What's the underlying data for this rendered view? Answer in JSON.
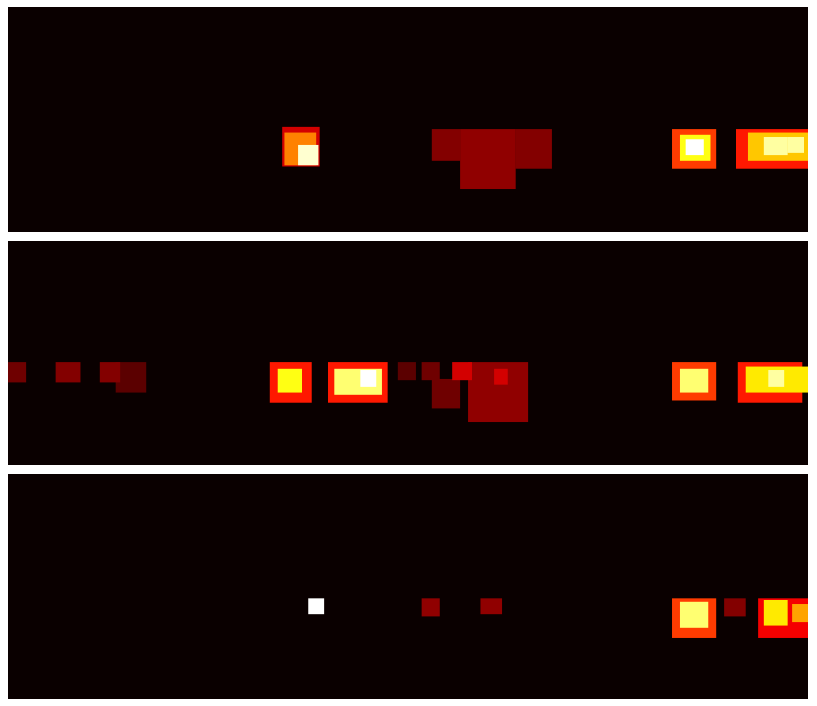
{
  "chart_data": [
    {
      "type": "heatmap",
      "colormap": "hot",
      "background": "#0a0000",
      "grid": false,
      "patches": [
        {
          "x": 14.5,
          "y": 6.9,
          "w": 1.0,
          "h": 1.0,
          "v": 0.95
        },
        {
          "x": 13.8,
          "y": 6.3,
          "w": 1.6,
          "h": 1.6,
          "v": 0.55
        },
        {
          "x": 13.7,
          "y": 6.0,
          "w": 1.9,
          "h": 2.0,
          "v": 0.3
        },
        {
          "x": 21.2,
          "y": 6.1,
          "w": 1.4,
          "h": 1.6,
          "v": 0.18
        },
        {
          "x": 22.6,
          "y": 6.1,
          "w": 2.8,
          "h": 3.0,
          "v": 0.2
        },
        {
          "x": 25.4,
          "y": 6.1,
          "w": 1.8,
          "h": 2.0,
          "v": 0.18
        },
        {
          "x": 33.2,
          "y": 6.1,
          "w": 2.2,
          "h": 2.0,
          "v": 0.45
        },
        {
          "x": 33.6,
          "y": 6.4,
          "w": 1.5,
          "h": 1.3,
          "v": 0.75
        },
        {
          "x": 33.9,
          "y": 6.6,
          "w": 0.9,
          "h": 0.8,
          "v": 1.0
        },
        {
          "x": 36.4,
          "y": 6.1,
          "w": 4.0,
          "h": 2.0,
          "v": 0.4
        },
        {
          "x": 37.0,
          "y": 6.3,
          "w": 3.3,
          "h": 1.4,
          "v": 0.65
        },
        {
          "x": 37.8,
          "y": 6.5,
          "w": 1.2,
          "h": 0.9,
          "v": 0.9
        },
        {
          "x": 39.0,
          "y": 6.5,
          "w": 0.8,
          "h": 0.8,
          "v": 0.9
        }
      ]
    },
    {
      "type": "heatmap",
      "colormap": "hot",
      "background": "#0a0000",
      "grid": false,
      "patches": [
        {
          "x": 0.0,
          "y": 6.1,
          "w": 0.9,
          "h": 1.0,
          "v": 0.15
        },
        {
          "x": 2.4,
          "y": 6.1,
          "w": 1.2,
          "h": 1.0,
          "v": 0.18
        },
        {
          "x": 4.6,
          "y": 6.1,
          "w": 1.0,
          "h": 1.0,
          "v": 0.18
        },
        {
          "x": 5.4,
          "y": 6.1,
          "w": 1.5,
          "h": 1.5,
          "v": 0.12
        },
        {
          "x": 13.1,
          "y": 6.1,
          "w": 2.1,
          "h": 2.0,
          "v": 0.4
        },
        {
          "x": 13.5,
          "y": 6.4,
          "w": 1.2,
          "h": 1.2,
          "v": 0.75
        },
        {
          "x": 16.0,
          "y": 6.1,
          "w": 3.0,
          "h": 2.0,
          "v": 0.4
        },
        {
          "x": 16.3,
          "y": 6.4,
          "w": 2.4,
          "h": 1.3,
          "v": 0.85
        },
        {
          "x": 17.6,
          "y": 6.5,
          "w": 0.8,
          "h": 0.8,
          "v": 1.0
        },
        {
          "x": 19.5,
          "y": 6.1,
          "w": 0.9,
          "h": 0.9,
          "v": 0.12
        },
        {
          "x": 20.7,
          "y": 6.1,
          "w": 0.9,
          "h": 0.9,
          "v": 0.15
        },
        {
          "x": 21.2,
          "y": 6.9,
          "w": 1.4,
          "h": 1.5,
          "v": 0.15
        },
        {
          "x": 22.2,
          "y": 6.1,
          "w": 1.0,
          "h": 0.9,
          "v": 0.3
        },
        {
          "x": 23.0,
          "y": 6.1,
          "w": 3.0,
          "h": 3.0,
          "v": 0.2
        },
        {
          "x": 24.3,
          "y": 6.4,
          "w": 0.7,
          "h": 0.8,
          "v": 0.3
        },
        {
          "x": 33.2,
          "y": 6.1,
          "w": 2.2,
          "h": 1.9,
          "v": 0.45
        },
        {
          "x": 33.6,
          "y": 6.4,
          "w": 1.4,
          "h": 1.2,
          "v": 0.85
        },
        {
          "x": 36.5,
          "y": 6.1,
          "w": 3.2,
          "h": 2.0,
          "v": 0.4
        },
        {
          "x": 36.9,
          "y": 6.3,
          "w": 3.3,
          "h": 1.3,
          "v": 0.7
        },
        {
          "x": 38.0,
          "y": 6.5,
          "w": 0.8,
          "h": 0.8,
          "v": 0.9
        }
      ]
    },
    {
      "type": "heatmap",
      "colormap": "hot",
      "background": "#0a0000",
      "grid": false,
      "patches": [
        {
          "x": 15.0,
          "y": 6.2,
          "w": 0.8,
          "h": 0.8,
          "v": 1.0
        },
        {
          "x": 20.7,
          "y": 6.2,
          "w": 0.9,
          "h": 0.9,
          "v": 0.2
        },
        {
          "x": 23.6,
          "y": 6.2,
          "w": 1.1,
          "h": 0.8,
          "v": 0.2
        },
        {
          "x": 33.2,
          "y": 6.2,
          "w": 2.2,
          "h": 2.0,
          "v": 0.45
        },
        {
          "x": 33.6,
          "y": 6.4,
          "w": 1.4,
          "h": 1.3,
          "v": 0.85
        },
        {
          "x": 35.8,
          "y": 6.2,
          "w": 1.1,
          "h": 0.9,
          "v": 0.18
        },
        {
          "x": 37.5,
          "y": 6.2,
          "w": 3.0,
          "h": 2.0,
          "v": 0.35
        },
        {
          "x": 37.8,
          "y": 6.3,
          "w": 1.2,
          "h": 1.3,
          "v": 0.7
        },
        {
          "x": 39.2,
          "y": 6.5,
          "w": 0.9,
          "h": 0.9,
          "v": 0.6
        }
      ]
    }
  ]
}
